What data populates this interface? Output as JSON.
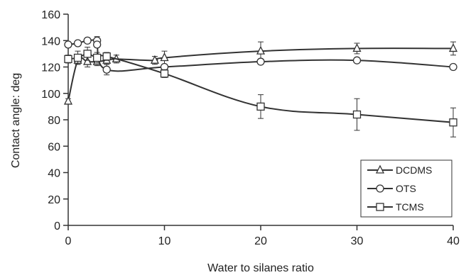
{
  "chart_data": {
    "type": "line",
    "title": "",
    "xlabel": "Water to silanes ratio",
    "ylabel": "Contact angle: deg",
    "xlim": [
      0,
      40
    ],
    "ylim": [
      0,
      160
    ],
    "x_ticks": [
      0,
      10,
      20,
      30,
      40
    ],
    "y_ticks": [
      0,
      20,
      40,
      60,
      80,
      100,
      120,
      140,
      160
    ],
    "grid": false,
    "legend_position": "bottom-right",
    "series": [
      {
        "name": "DCDMS",
        "marker": "triangle",
        "points": [
          {
            "x": 0,
            "y": 94,
            "err": 2
          },
          {
            "x": 1,
            "y": 125,
            "err": 3
          },
          {
            "x": 2,
            "y": 124,
            "err": 4
          },
          {
            "x": 3,
            "y": 124,
            "err": 3
          },
          {
            "x": 4,
            "y": 125,
            "err": 3
          },
          {
            "x": 5,
            "y": 126,
            "err": 3
          },
          {
            "x": 9,
            "y": 125,
            "err": 3
          },
          {
            "x": 10,
            "y": 127,
            "err": 5
          },
          {
            "x": 20,
            "y": 132,
            "err": 7
          },
          {
            "x": 30,
            "y": 134,
            "err": 4
          },
          {
            "x": 40,
            "y": 134,
            "err": 5
          }
        ]
      },
      {
        "name": "OTS",
        "marker": "circle",
        "points": [
          {
            "x": 0,
            "y": 137,
            "err": 0
          },
          {
            "x": 1,
            "y": 138,
            "err": 0
          },
          {
            "x": 2,
            "y": 140,
            "err": 0
          },
          {
            "x": 3,
            "y": 140,
            "err": 3
          },
          {
            "x": 3,
            "y": 137,
            "err": 0
          },
          {
            "x": 4,
            "y": 118,
            "err": 4
          },
          {
            "x": 10,
            "y": 120,
            "err": 0
          },
          {
            "x": 20,
            "y": 124,
            "err": 0
          },
          {
            "x": 30,
            "y": 125,
            "err": 0
          },
          {
            "x": 40,
            "y": 120,
            "err": 0
          }
        ]
      },
      {
        "name": "TCMS",
        "marker": "square",
        "points": [
          {
            "x": 0,
            "y": 126,
            "err": 3
          },
          {
            "x": 1,
            "y": 127,
            "err": 5
          },
          {
            "x": 2,
            "y": 130,
            "err": 5
          },
          {
            "x": 3,
            "y": 127,
            "err": 4
          },
          {
            "x": 4,
            "y": 128,
            "err": 3
          },
          {
            "x": 10,
            "y": 115,
            "err": 3
          },
          {
            "x": 20,
            "y": 90,
            "err": 9
          },
          {
            "x": 30,
            "y": 84,
            "err": 12
          },
          {
            "x": 40,
            "y": 78,
            "err": 11
          }
        ]
      }
    ]
  }
}
